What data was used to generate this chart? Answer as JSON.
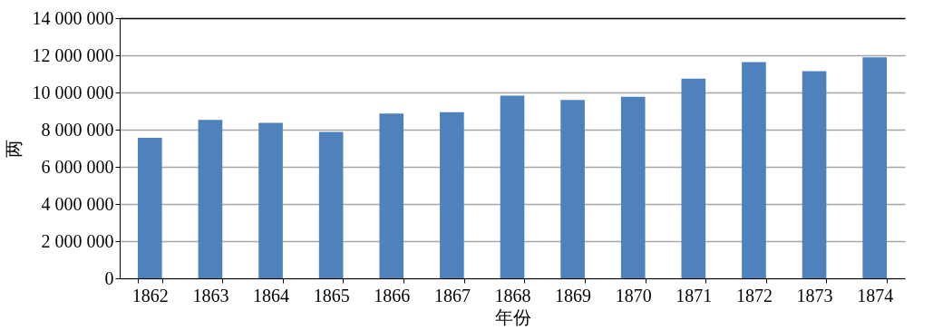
{
  "chart_data": {
    "type": "bar",
    "xlabel": "年份",
    "ylabel": "两",
    "categories": [
      "1862",
      "1863",
      "1864",
      "1865",
      "1866",
      "1867",
      "1868",
      "1869",
      "1870",
      "1871",
      "1872",
      "1873",
      "1874"
    ],
    "values": [
      7560000,
      8530000,
      8370000,
      7880000,
      8860000,
      8940000,
      9830000,
      9600000,
      9770000,
      10740000,
      11630000,
      11150000,
      11890000
    ],
    "color": "#4f81bd",
    "ylim": [
      0,
      14000000
    ],
    "yticks": [
      0,
      {
        "value": 2000000,
        "label": "2 000 000"
      },
      {
        "value": 4000000,
        "label": "4 000 000"
      },
      {
        "value": 6000000,
        "label": "6 000 000"
      },
      {
        "value": 8000000,
        "label": "8 000 000"
      },
      {
        "value": 10000000,
        "label": "10 000 000"
      },
      {
        "value": 12000000,
        "label": "12 000 000"
      },
      {
        "value": 14000000,
        "label": "14 000 000"
      }
    ],
    "grid": "y"
  }
}
